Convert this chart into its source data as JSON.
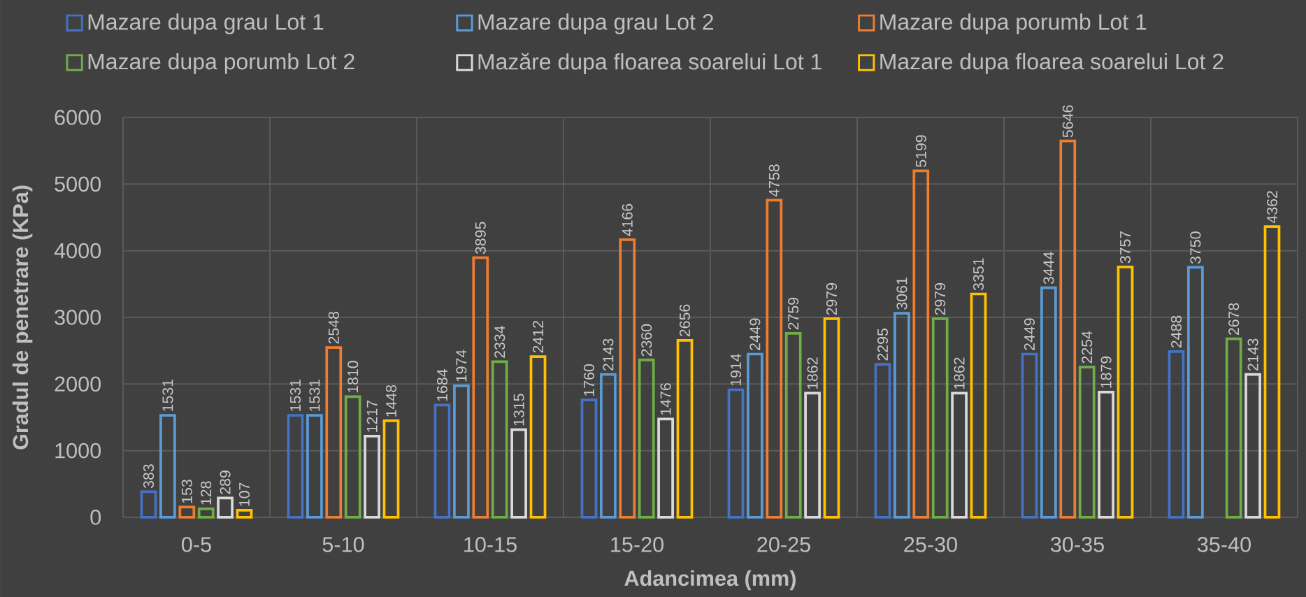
{
  "chart_data": {
    "type": "bar",
    "xlabel": "Adancimea (mm)",
    "ylabel": "Gradul de penetrare (KPa)",
    "categories": [
      "0-5",
      "5-10",
      "10-15",
      "15-20",
      "20-25",
      "25-30",
      "30-35",
      "35-40"
    ],
    "series": [
      {
        "name": "Mazare dupa grau Lot 1",
        "color": "#4472c4",
        "values": [
          383,
          1531,
          1684,
          1760,
          1914,
          2295,
          2449,
          2488
        ]
      },
      {
        "name": "Mazare dupa grau Lot 2",
        "color": "#5b9bd5",
        "values": [
          1531,
          1531,
          1974,
          2143,
          2449,
          3061,
          3444,
          3750
        ]
      },
      {
        "name": "Mazare dupa porumb Lot 1",
        "color": "#ed7d31",
        "values": [
          153,
          2548,
          3895,
          4166,
          4758,
          5199,
          5646,
          null
        ]
      },
      {
        "name": "Mazare dupa porumb Lot 2",
        "color": "#70ad47",
        "values": [
          128,
          1810,
          2334,
          2360,
          2759,
          2979,
          2254,
          2678
        ]
      },
      {
        "name": "Mazăre dupa floarea soarelui Lot 1",
        "color": "#d9d9d9",
        "values": [
          289,
          1217,
          1315,
          1476,
          1862,
          1862,
          1879,
          2143
        ]
      },
      {
        "name": "Mazare dupa floarea soarelui Lot 2",
        "color": "#ffc000",
        "values": [
          107,
          1448,
          2412,
          2656,
          2979,
          3351,
          3757,
          4362
        ]
      }
    ],
    "ylim": [
      0,
      6000
    ],
    "yticks": [
      0,
      1000,
      2000,
      3000,
      4000,
      5000,
      6000
    ],
    "grid": true,
    "legend": "top",
    "data_labels": true
  }
}
